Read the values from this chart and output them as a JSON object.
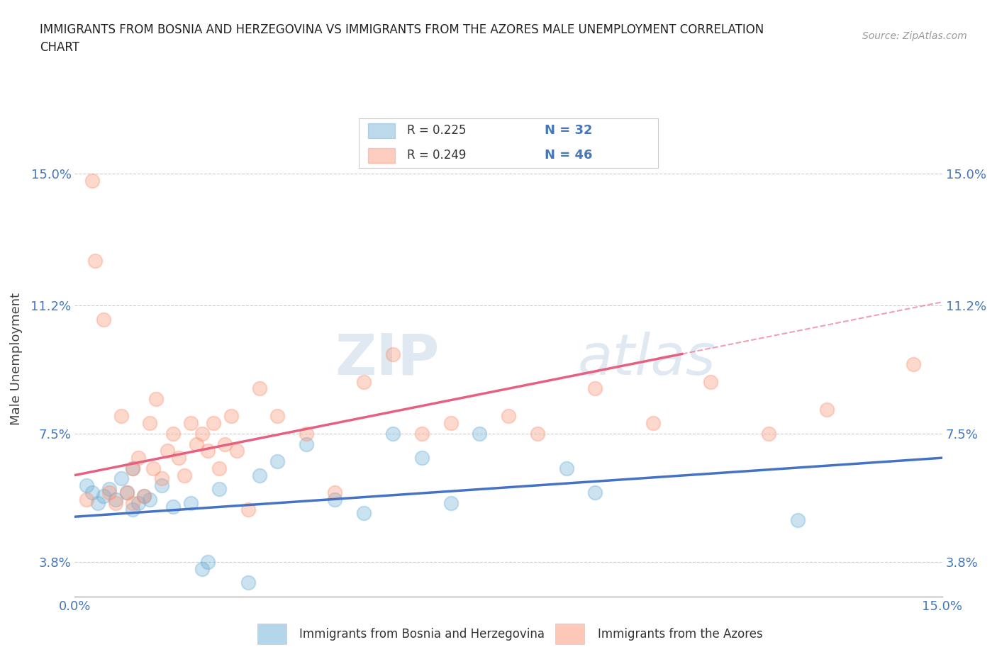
{
  "title_line1": "IMMIGRANTS FROM BOSNIA AND HERZEGOVINA VS IMMIGRANTS FROM THE AZORES MALE UNEMPLOYMENT CORRELATION",
  "title_line2": "CHART",
  "source": "Source: ZipAtlas.com",
  "ylabel": "Male Unemployment",
  "xlim": [
    0.0,
    15.0
  ],
  "ylim": [
    2.8,
    16.5
  ],
  "yticks": [
    3.8,
    7.5,
    11.2,
    15.0
  ],
  "xticks": [
    0.0,
    3.0,
    6.0,
    9.0,
    12.0,
    15.0
  ],
  "xtick_labels": [
    "0.0%",
    "",
    "",
    "",
    "",
    "15.0%"
  ],
  "ytick_labels": [
    "3.8%",
    "7.5%",
    "11.2%",
    "15.0%"
  ],
  "blue_color": "#6baed6",
  "pink_color": "#fc9272",
  "blue_line_color": "#4472c4",
  "pink_line_color": "#e86080",
  "legend_blue_R": "0.225",
  "legend_blue_N": "32",
  "legend_pink_R": "0.249",
  "legend_pink_N": "46",
  "watermark": "ZIPAtlas",
  "title_color": "#333333",
  "axis_label_color": "#4477bb",
  "blue_scatter": [
    [
      0.2,
      6.0
    ],
    [
      0.3,
      5.8
    ],
    [
      0.4,
      5.5
    ],
    [
      0.5,
      5.7
    ],
    [
      0.6,
      5.9
    ],
    [
      0.7,
      5.6
    ],
    [
      0.8,
      6.2
    ],
    [
      0.9,
      5.8
    ],
    [
      1.0,
      5.3
    ],
    [
      1.0,
      6.5
    ],
    [
      1.1,
      5.5
    ],
    [
      1.2,
      5.7
    ],
    [
      1.3,
      5.6
    ],
    [
      1.5,
      6.0
    ],
    [
      1.7,
      5.4
    ],
    [
      2.0,
      5.5
    ],
    [
      2.2,
      3.6
    ],
    [
      2.3,
      3.8
    ],
    [
      2.5,
      5.9
    ],
    [
      3.0,
      3.2
    ],
    [
      3.2,
      6.3
    ],
    [
      3.5,
      6.7
    ],
    [
      4.0,
      7.2
    ],
    [
      4.5,
      5.6
    ],
    [
      5.0,
      5.2
    ],
    [
      5.5,
      7.5
    ],
    [
      6.0,
      6.8
    ],
    [
      6.5,
      5.5
    ],
    [
      7.0,
      7.5
    ],
    [
      8.5,
      6.5
    ],
    [
      9.0,
      5.8
    ],
    [
      12.5,
      5.0
    ]
  ],
  "pink_scatter": [
    [
      0.2,
      5.6
    ],
    [
      0.3,
      14.8
    ],
    [
      0.35,
      12.5
    ],
    [
      0.5,
      10.8
    ],
    [
      0.6,
      5.8
    ],
    [
      0.7,
      5.5
    ],
    [
      0.8,
      8.0
    ],
    [
      0.9,
      5.8
    ],
    [
      1.0,
      6.5
    ],
    [
      1.0,
      5.5
    ],
    [
      1.1,
      6.8
    ],
    [
      1.2,
      5.7
    ],
    [
      1.3,
      7.8
    ],
    [
      1.35,
      6.5
    ],
    [
      1.4,
      8.5
    ],
    [
      1.5,
      6.2
    ],
    [
      1.6,
      7.0
    ],
    [
      1.7,
      7.5
    ],
    [
      1.8,
      6.8
    ],
    [
      1.9,
      6.3
    ],
    [
      2.0,
      7.8
    ],
    [
      2.1,
      7.2
    ],
    [
      2.2,
      7.5
    ],
    [
      2.3,
      7.0
    ],
    [
      2.4,
      7.8
    ],
    [
      2.5,
      6.5
    ],
    [
      2.6,
      7.2
    ],
    [
      2.7,
      8.0
    ],
    [
      2.8,
      7.0
    ],
    [
      3.0,
      5.3
    ],
    [
      3.2,
      8.8
    ],
    [
      3.5,
      8.0
    ],
    [
      4.0,
      7.5
    ],
    [
      4.5,
      5.8
    ],
    [
      5.0,
      9.0
    ],
    [
      5.5,
      9.8
    ],
    [
      6.0,
      7.5
    ],
    [
      6.5,
      7.8
    ],
    [
      7.5,
      8.0
    ],
    [
      8.0,
      7.5
    ],
    [
      9.0,
      8.8
    ],
    [
      10.0,
      7.8
    ],
    [
      11.0,
      9.0
    ],
    [
      12.0,
      7.5
    ],
    [
      13.0,
      8.2
    ],
    [
      14.5,
      9.5
    ]
  ],
  "blue_line": [
    [
      0.0,
      5.1
    ],
    [
      15.0,
      6.8
    ]
  ],
  "pink_line_solid": [
    [
      0.0,
      6.3
    ],
    [
      10.5,
      9.8
    ]
  ],
  "pink_line_dashed": [
    [
      10.5,
      9.8
    ],
    [
      15.0,
      11.3
    ]
  ],
  "grid_color": "#cccccc",
  "background_color": "#ffffff"
}
